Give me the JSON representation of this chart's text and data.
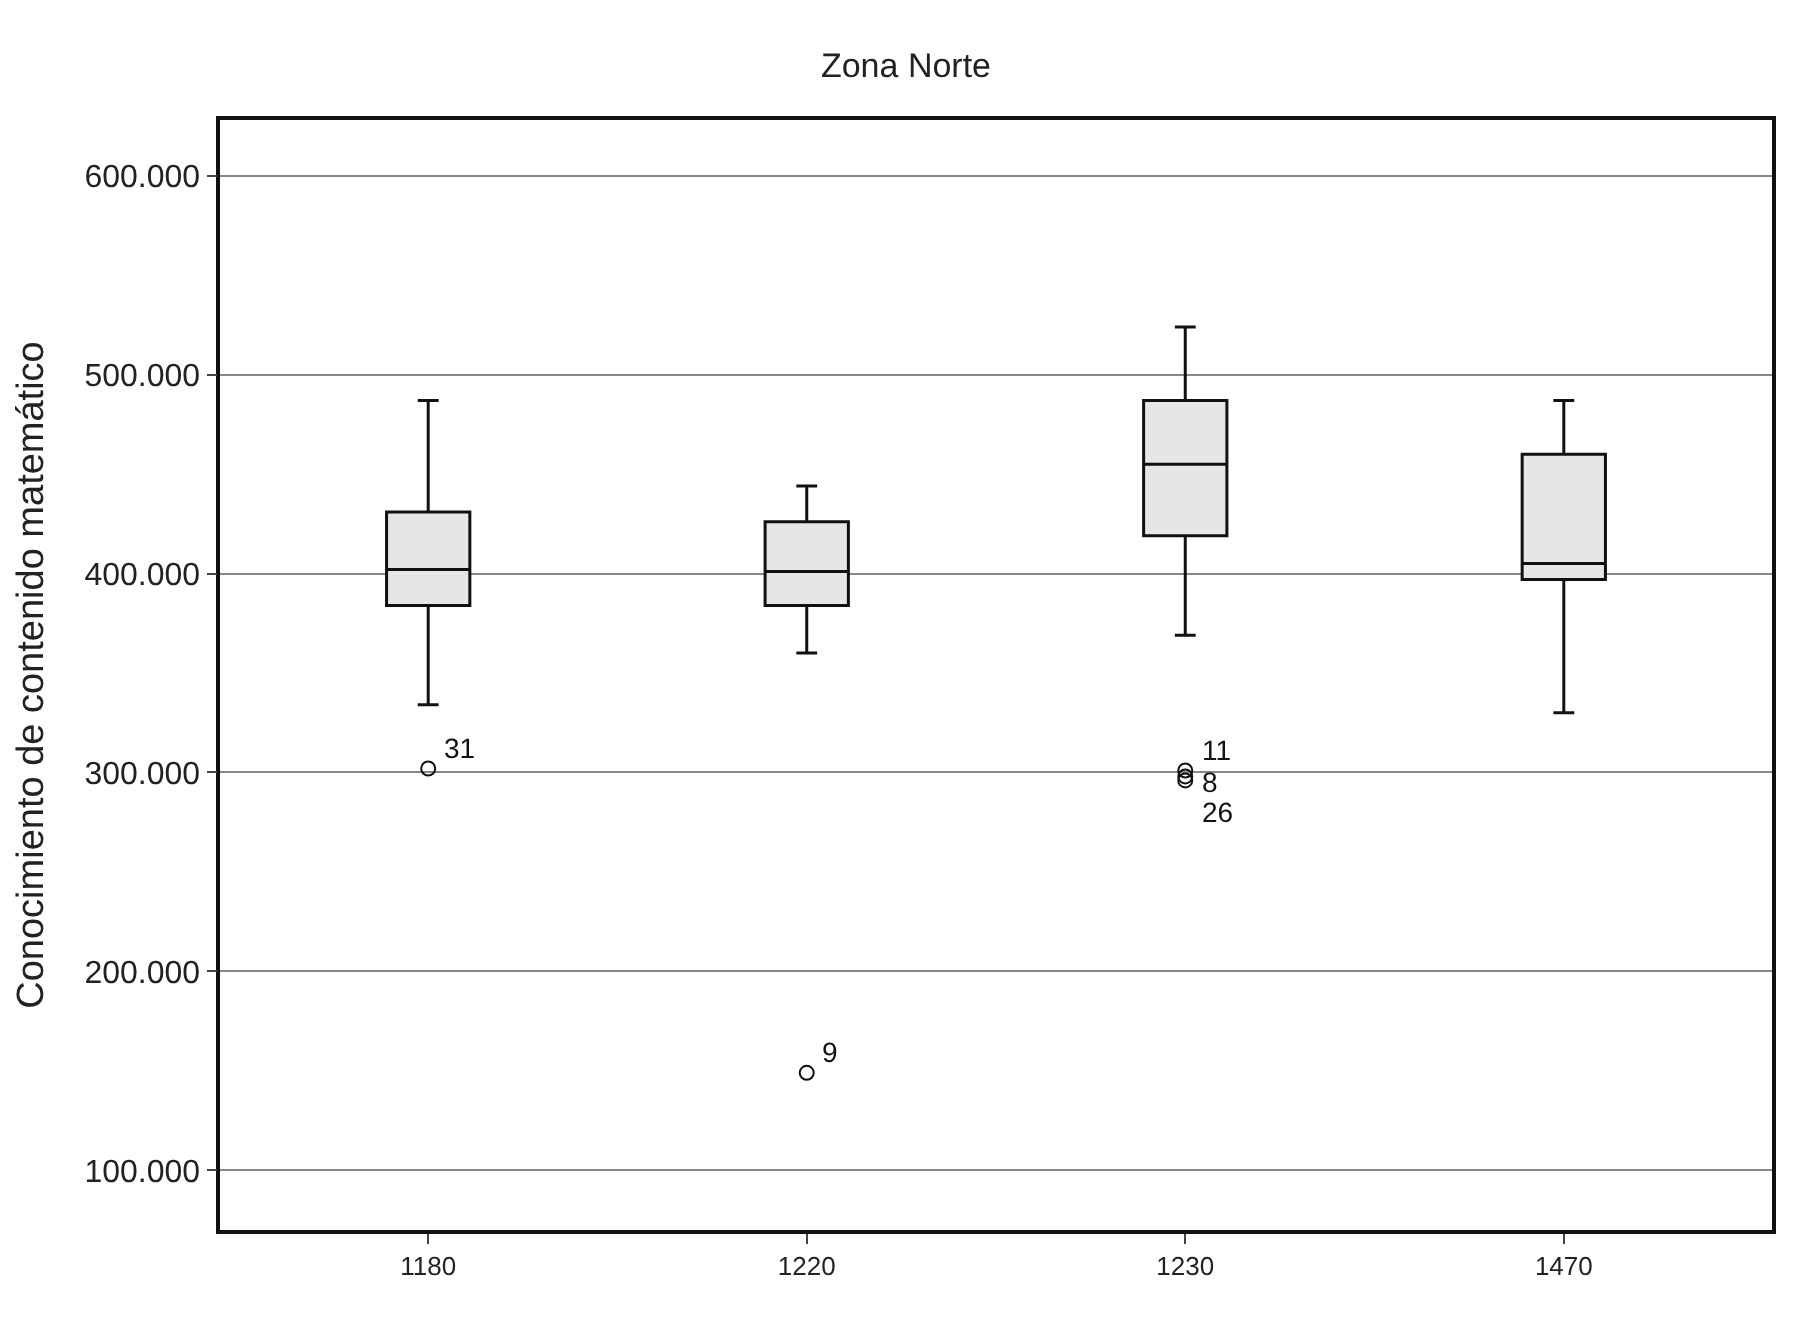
{
  "chart_data": {
    "type": "box",
    "title": "Zona Norte",
    "ylabel": "Conocimiento de contenido matemático",
    "categories": [
      "1180",
      "1220",
      "1230",
      "1470"
    ],
    "boxes": [
      {
        "low": 334,
        "q1": 384,
        "median": 402,
        "q3": 431,
        "high": 487,
        "outliers": [
          302
        ]
      },
      {
        "low": 360,
        "q1": 384,
        "median": 401,
        "q3": 426,
        "high": 444,
        "outliers": [
          149
        ]
      },
      {
        "low": 369,
        "q1": 419,
        "median": 455,
        "q3": 487,
        "high": 524,
        "outliers": [
          301,
          298,
          296
        ]
      },
      {
        "low": 330,
        "q1": 397,
        "median": 405,
        "q3": 460,
        "high": 487
      }
    ],
    "color": "#e6e6e6",
    "ylim": [
      70,
      628
    ],
    "yticks": [
      {
        "value": 100,
        "label": "100.000"
      },
      {
        "value": 200,
        "label": "200.000"
      },
      {
        "value": 300,
        "label": "300.000"
      },
      {
        "value": 400,
        "label": "400.000"
      },
      {
        "value": 500,
        "label": "500.000"
      },
      {
        "value": 600,
        "label": "600.000"
      }
    ],
    "annotations": [
      "31",
      "9",
      "11",
      "8",
      "26"
    ],
    "grid": "y",
    "marker": "circle"
  }
}
